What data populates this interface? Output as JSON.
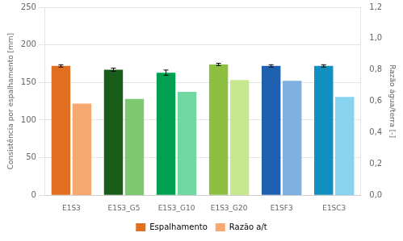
{
  "chart_data": {
    "type": "bar",
    "categories": [
      "E1S3",
      "E1S3_G5",
      "E1S3_G10",
      "E1S3_G20",
      "E1SF3",
      "E1SC3"
    ],
    "series": [
      {
        "name": "Espalhamento",
        "color": "#E07020",
        "colors": [
          "#E07020",
          "#1A5C1A",
          "#00A050",
          "#8DC040",
          "#2060B0",
          "#1090C0"
        ],
        "values": [
          172,
          167,
          163,
          174,
          172,
          172
        ],
        "errors": [
          1.5,
          2.0,
          3.5,
          1.5,
          1.5,
          1.5
        ]
      },
      {
        "name": "Razão a/t",
        "color": "#F5A870",
        "colors": [
          "#F5A870",
          "#7DC870",
          "#70D8A0",
          "#C8E890",
          "#80B0E0",
          "#88D4F0"
        ],
        "values": [
          0.585,
          0.615,
          0.66,
          0.735,
          0.73,
          0.628
        ],
        "axis": "y2"
      }
    ],
    "ylabel": "Consistência por espalhamento [mm]",
    "y2label": "Razão água/terra [-]",
    "ylim": [
      0,
      250
    ],
    "yticks": [
      0,
      50,
      100,
      150,
      200,
      250
    ],
    "y2lim": [
      0,
      1.2
    ],
    "y2ticks": [
      {
        "value": 0,
        "label": "0,0"
      },
      {
        "value": 0.2,
        "label": "0,2"
      },
      {
        "value": 0.4,
        "label": "0,4"
      },
      {
        "value": 0.6,
        "label": "0,6"
      },
      {
        "value": 0.8,
        "label": "0,8"
      },
      {
        "value": 1.0,
        "label": "1,0"
      },
      {
        "value": 1.2,
        "label": "1,2"
      }
    ],
    "grid": true,
    "legend": "bottom"
  }
}
